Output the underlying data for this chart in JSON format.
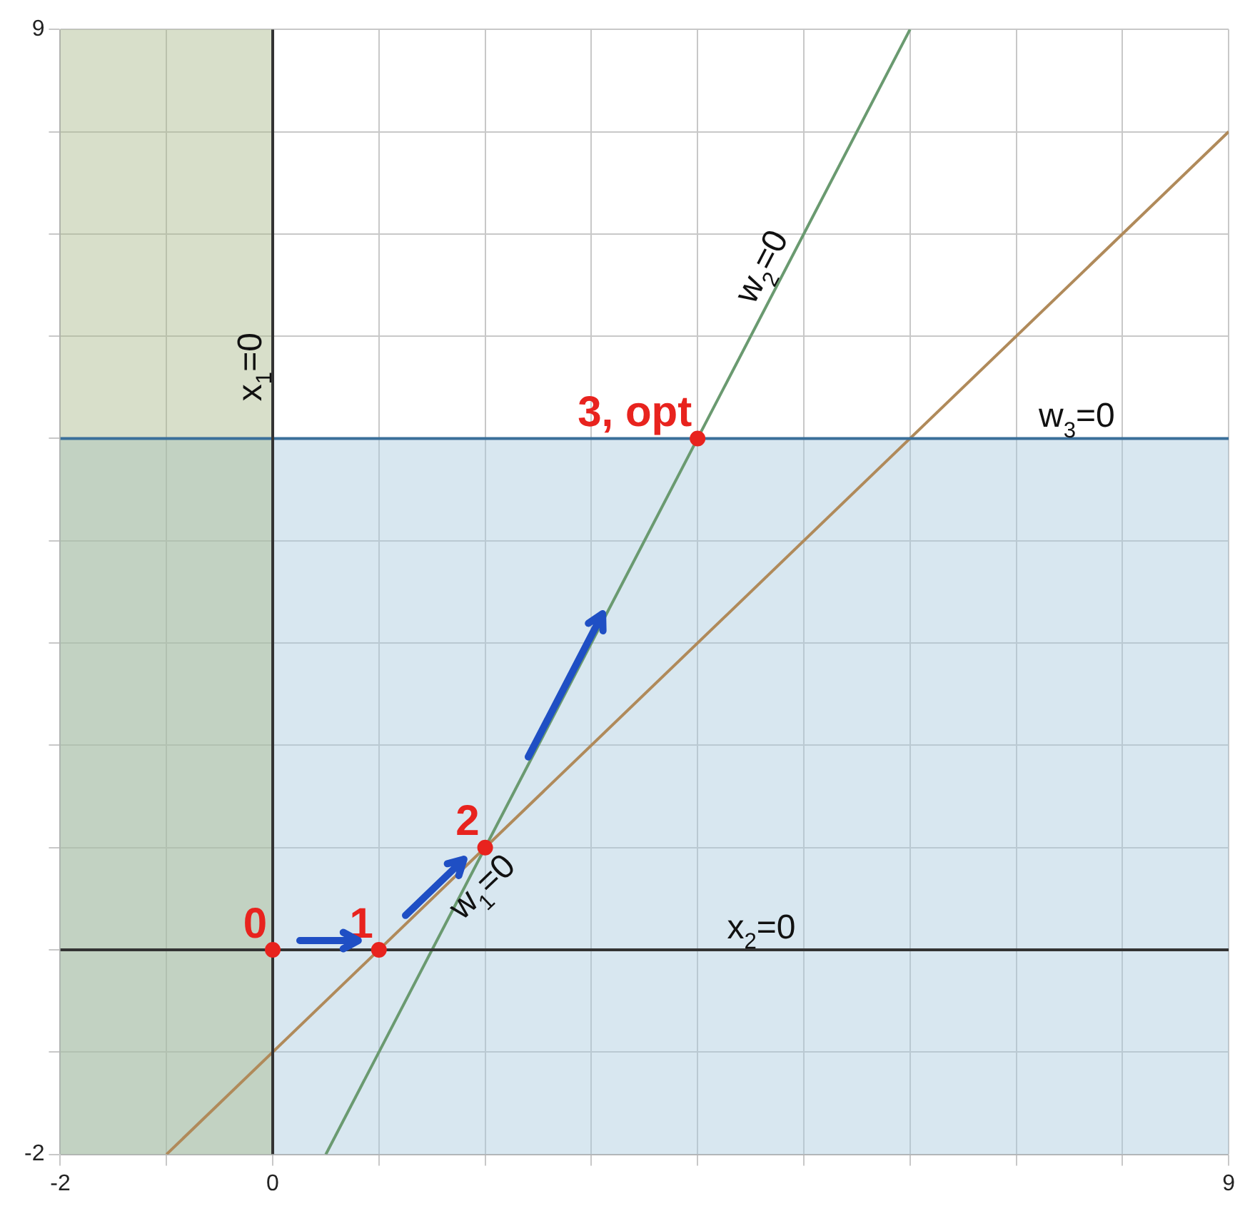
{
  "chart_data": {
    "type": "line",
    "xlim": [
      -2,
      9
    ],
    "ylim": [
      -2,
      9
    ],
    "xticks": [
      -2,
      {
        "value": -1,
        "label": null
      },
      0,
      {
        "value": 1,
        "label": null
      },
      {
        "value": 2,
        "label": null
      },
      {
        "value": 3,
        "label": null
      },
      {
        "value": 4,
        "label": null
      },
      {
        "value": 5,
        "label": null
      },
      {
        "value": 6,
        "label": null
      },
      {
        "value": 7,
        "label": null
      },
      {
        "value": 8,
        "label": null
      },
      9
    ],
    "yticks": [
      -2,
      {
        "value": -1,
        "label": null
      },
      {
        "value": 0,
        "label": null
      },
      {
        "value": 1,
        "label": null
      },
      {
        "value": 2,
        "label": null
      },
      {
        "value": 3,
        "label": null
      },
      {
        "value": 4,
        "label": null
      },
      {
        "value": 5,
        "label": null
      },
      {
        "value": 6,
        "label": null
      },
      {
        "value": 7,
        "label": null
      },
      {
        "value": 8,
        "label": null
      },
      9
    ],
    "grid": true,
    "legend": false,
    "series": [
      {
        "type": "line",
        "name": "x$_{1}$=0",
        "color": "#333333",
        "x": [
          0,
          0
        ],
        "values": [
          -2,
          9
        ]
      },
      {
        "type": "line",
        "name": "x$_{2}$=0",
        "color": "#333333",
        "x": [
          -2,
          9
        ],
        "values": [
          0,
          0
        ]
      },
      {
        "type": "line",
        "name": "w$_{3}$=0",
        "color": "#3a6f9a",
        "x": [
          -2,
          9
        ],
        "values": [
          5,
          5
        ]
      },
      {
        "type": "line",
        "name": "w$_{1}$=0",
        "color": "#b08a5a",
        "x": [
          -1,
          9
        ],
        "values": [
          -2,
          8
        ]
      },
      {
        "type": "line",
        "name": "w$_{2}$=0",
        "color": "#6a9a70",
        "x": [
          0.5,
          6
        ],
        "values": [
          -2,
          9
        ]
      },
      {
        "type": "scatter",
        "color": "#e8231e",
        "x": [
          0,
          1,
          2,
          4
        ],
        "values": [
          0,
          0,
          1,
          5
        ]
      }
    ],
    "bands": [
      {
        "axis": "y",
        "from": -2,
        "to": 5,
        "color": "#a9c9dd"
      },
      {
        "axis": "x",
        "from": -2,
        "to": 0,
        "color": "#a9b98a"
      }
    ],
    "annotations": [
      {
        "text": "0",
        "x": 0,
        "y": 0
      },
      {
        "text": "1",
        "x": 1,
        "y": 0
      },
      {
        "text": "2",
        "x": 2,
        "y": 1
      },
      {
        "text": "3, opt",
        "x": 4,
        "y": 5
      }
    ]
  }
}
